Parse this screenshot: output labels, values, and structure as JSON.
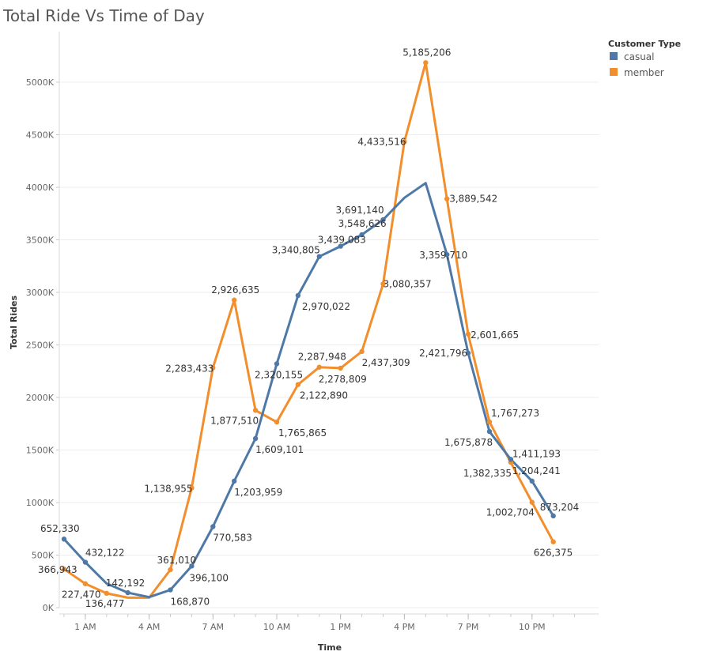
{
  "colors": {
    "casual": "#4e79a7",
    "member": "#f28e2b"
  },
  "chart_data": {
    "type": "line",
    "title": "Total Ride Vs Time of Day",
    "xlabel": "Time",
    "ylabel": "Total Rides",
    "ylim": [
      0,
      5350000
    ],
    "y_ticks": [
      {
        "value": 0,
        "label": "0K"
      },
      {
        "value": 500000,
        "label": "500K"
      },
      {
        "value": 1000000,
        "label": "1000K"
      },
      {
        "value": 1500000,
        "label": "1500K"
      },
      {
        "value": 2000000,
        "label": "2000K"
      },
      {
        "value": 2500000,
        "label": "2500K"
      },
      {
        "value": 3000000,
        "label": "3000K"
      },
      {
        "value": 3500000,
        "label": "3500K"
      },
      {
        "value": 4000000,
        "label": "4000K"
      },
      {
        "value": 4500000,
        "label": "4500K"
      },
      {
        "value": 5000000,
        "label": "5000K"
      }
    ],
    "x_ticks": [
      {
        "hour": 1,
        "label": "1 AM"
      },
      {
        "hour": 4,
        "label": "4 AM"
      },
      {
        "hour": 7,
        "label": "7 AM"
      },
      {
        "hour": 10,
        "label": "10 AM"
      },
      {
        "hour": 13,
        "label": "1 PM"
      },
      {
        "hour": 16,
        "label": "4 PM"
      },
      {
        "hour": 19,
        "label": "7 PM"
      },
      {
        "hour": 22,
        "label": "10 PM"
      }
    ],
    "x": [
      0,
      1,
      2,
      3,
      4,
      5,
      6,
      7,
      8,
      9,
      10,
      11,
      12,
      13,
      14,
      15,
      16,
      17,
      18,
      19,
      20,
      21,
      22,
      23
    ],
    "legend": {
      "title": "Customer Type",
      "position": "top-right"
    },
    "series": [
      {
        "name": "casual",
        "values": [
          652330,
          432122,
          230000,
          142192,
          100000,
          168870,
          396100,
          770583,
          1203959,
          1609101,
          2320155,
          2970022,
          3340805,
          3439083,
          3548626,
          3691140,
          3900000,
          4040000,
          3359710,
          2421796,
          1675878,
          1411193,
          1204241,
          873204
        ],
        "labels": [
          "652,330",
          "432,122",
          "",
          "142,192",
          "",
          "168,870",
          "396,100",
          "770,583",
          "1,203,959",
          "1,609,101",
          "2,320,155",
          "2,970,022",
          "3,340,805",
          "3,439,083",
          "3,548,626",
          "3,691,140",
          "",
          "",
          "3,359,710",
          "2,421,796",
          "1,675,878",
          "1,411,193",
          "1,204,241",
          "873,204"
        ]
      },
      {
        "name": "member",
        "values": [
          366943,
          227470,
          136477,
          95000,
          95000,
          361010,
          1138955,
          2283433,
          2926635,
          1877510,
          1765865,
          2122890,
          2287948,
          2278809,
          2437309,
          3080357,
          4433516,
          5185206,
          3889542,
          2601665,
          1767273,
          1382335,
          1002704,
          626375
        ],
        "labels": [
          "366,943",
          "227,470",
          "136,477",
          "",
          "",
          "361,010",
          "1,138,955",
          "2,283,433",
          "2,926,635",
          "1,877,510",
          "1,765,865",
          "2,122,890",
          "2,287,948",
          "2,278,809",
          "2,437,309",
          "3,080,357",
          "4,433,516",
          "5,185,206",
          "3,889,542",
          "2,601,665",
          "1,767,273",
          "1,382,335",
          "1,002,704",
          "626,375"
        ]
      }
    ]
  }
}
